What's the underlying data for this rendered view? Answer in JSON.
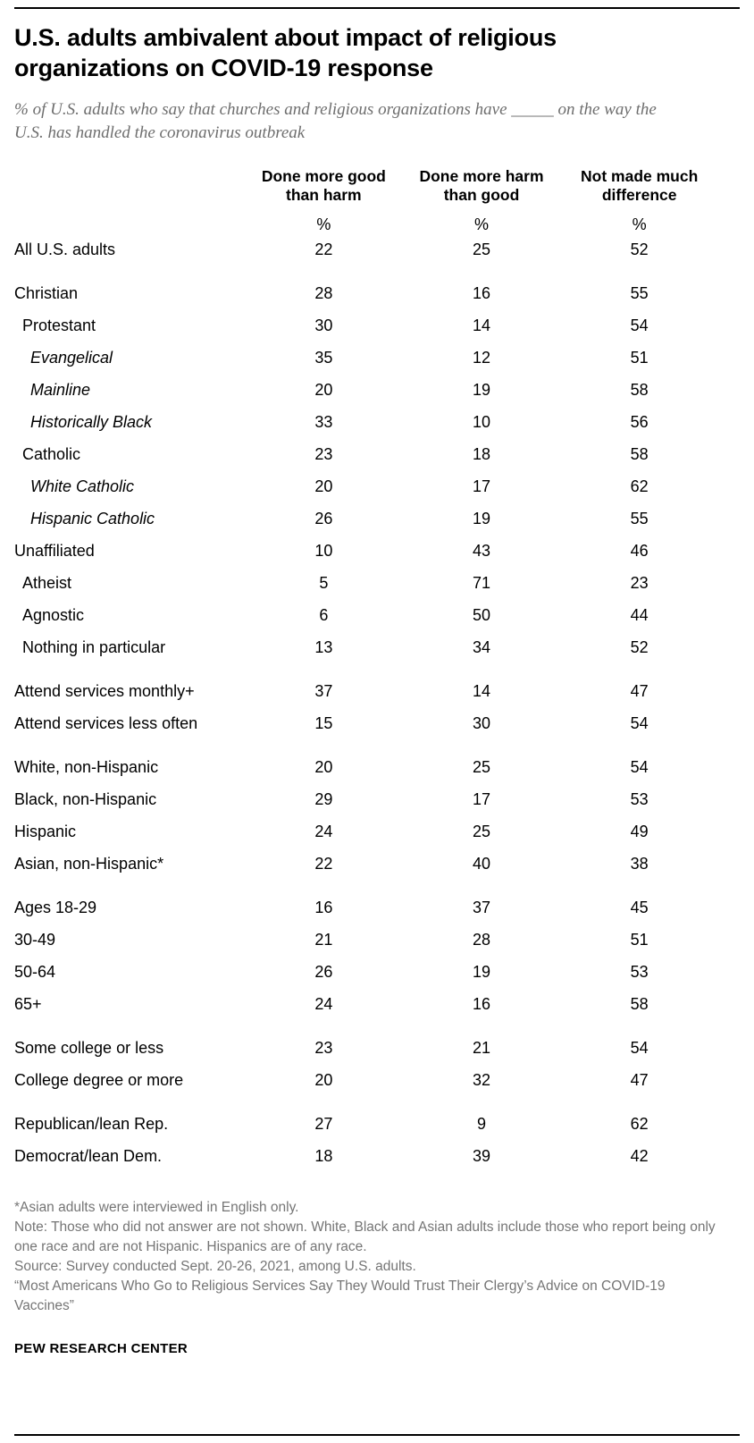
{
  "header": {
    "title": "U.S. adults ambivalent about impact of religious organizations on COVID-19 response",
    "subtitle": "% of U.S. adults who say that churches and religious organizations have _____ on the way the U.S. has handled the coronavirus outbreak"
  },
  "chart_data": {
    "type": "table",
    "title": "U.S. adults ambivalent about impact of religious organizations on COVID-19 response",
    "subtitle": "% of U.S. adults who say that churches and religious organizations have _____ on the way the U.S. has handled the coronavirus outbreak",
    "columns": [
      "Done more good than harm",
      "Done more harm than good",
      "Not made much difference"
    ],
    "unit": "%",
    "rows": [
      {
        "label": "All U.S. adults",
        "indent": 0,
        "italic": false,
        "gap_before": false,
        "values": [
          22,
          25,
          52
        ]
      },
      {
        "label": "Christian",
        "indent": 0,
        "italic": false,
        "gap_before": true,
        "values": [
          28,
          16,
          55
        ]
      },
      {
        "label": "Protestant",
        "indent": 1,
        "italic": false,
        "gap_before": false,
        "values": [
          30,
          14,
          54
        ]
      },
      {
        "label": "Evangelical",
        "indent": 2,
        "italic": true,
        "gap_before": false,
        "values": [
          35,
          12,
          51
        ]
      },
      {
        "label": "Mainline",
        "indent": 2,
        "italic": true,
        "gap_before": false,
        "values": [
          20,
          19,
          58
        ]
      },
      {
        "label": "Historically Black",
        "indent": 2,
        "italic": true,
        "gap_before": false,
        "values": [
          33,
          10,
          56
        ]
      },
      {
        "label": "Catholic",
        "indent": 1,
        "italic": false,
        "gap_before": false,
        "values": [
          23,
          18,
          58
        ]
      },
      {
        "label": "White Catholic",
        "indent": 2,
        "italic": true,
        "gap_before": false,
        "values": [
          20,
          17,
          62
        ]
      },
      {
        "label": "Hispanic Catholic",
        "indent": 2,
        "italic": true,
        "gap_before": false,
        "values": [
          26,
          19,
          55
        ]
      },
      {
        "label": "Unaffiliated",
        "indent": 0,
        "italic": false,
        "gap_before": false,
        "values": [
          10,
          43,
          46
        ]
      },
      {
        "label": "Atheist",
        "indent": 1,
        "italic": false,
        "gap_before": false,
        "values": [
          5,
          71,
          23
        ]
      },
      {
        "label": "Agnostic",
        "indent": 1,
        "italic": false,
        "gap_before": false,
        "values": [
          6,
          50,
          44
        ]
      },
      {
        "label": "Nothing in particular",
        "indent": 1,
        "italic": false,
        "gap_before": false,
        "values": [
          13,
          34,
          52
        ]
      },
      {
        "label": "Attend services monthly+",
        "indent": 0,
        "italic": false,
        "gap_before": true,
        "values": [
          37,
          14,
          47
        ]
      },
      {
        "label": "Attend services less often",
        "indent": 0,
        "italic": false,
        "gap_before": false,
        "values": [
          15,
          30,
          54
        ]
      },
      {
        "label": "White, non-Hispanic",
        "indent": 0,
        "italic": false,
        "gap_before": true,
        "values": [
          20,
          25,
          54
        ]
      },
      {
        "label": "Black, non-Hispanic",
        "indent": 0,
        "italic": false,
        "gap_before": false,
        "values": [
          29,
          17,
          53
        ]
      },
      {
        "label": "Hispanic",
        "indent": 0,
        "italic": false,
        "gap_before": false,
        "values": [
          24,
          25,
          49
        ]
      },
      {
        "label": "Asian, non-Hispanic*",
        "indent": 0,
        "italic": false,
        "gap_before": false,
        "values": [
          22,
          40,
          38
        ]
      },
      {
        "label": "Ages 18-29",
        "indent": 0,
        "italic": false,
        "gap_before": true,
        "values": [
          16,
          37,
          45
        ]
      },
      {
        "label": "30-49",
        "indent": 0,
        "italic": false,
        "gap_before": false,
        "values": [
          21,
          28,
          51
        ]
      },
      {
        "label": "50-64",
        "indent": 0,
        "italic": false,
        "gap_before": false,
        "values": [
          26,
          19,
          53
        ]
      },
      {
        "label": "65+",
        "indent": 0,
        "italic": false,
        "gap_before": false,
        "values": [
          24,
          16,
          58
        ]
      },
      {
        "label": "Some college or less",
        "indent": 0,
        "italic": false,
        "gap_before": true,
        "values": [
          23,
          21,
          54
        ]
      },
      {
        "label": "College degree or more",
        "indent": 0,
        "italic": false,
        "gap_before": false,
        "values": [
          20,
          32,
          47
        ]
      },
      {
        "label": "Republican/lean Rep.",
        "indent": 0,
        "italic": false,
        "gap_before": true,
        "values": [
          27,
          9,
          62
        ]
      },
      {
        "label": "Democrat/lean Dem.",
        "indent": 0,
        "italic": false,
        "gap_before": false,
        "values": [
          18,
          39,
          42
        ]
      }
    ]
  },
  "footnotes": {
    "asterisk": "*Asian adults were interviewed in English only.",
    "note": "Note: Those who did not answer are not shown. White, Black and Asian adults include those who report being only one race and are not Hispanic. Hispanics are of any race.",
    "source": "Source: Survey conducted Sept. 20-26, 2021, among U.S. adults.",
    "report": "“Most Americans Who Go to Religious Services Say They Would Trust Their Clergy’s Advice on COVID-19 Vaccines”"
  },
  "footer": {
    "org": "PEW RESEARCH CENTER"
  },
  "colors": {
    "text": "#000000",
    "muted": "#757575",
    "rule": "#000000"
  }
}
